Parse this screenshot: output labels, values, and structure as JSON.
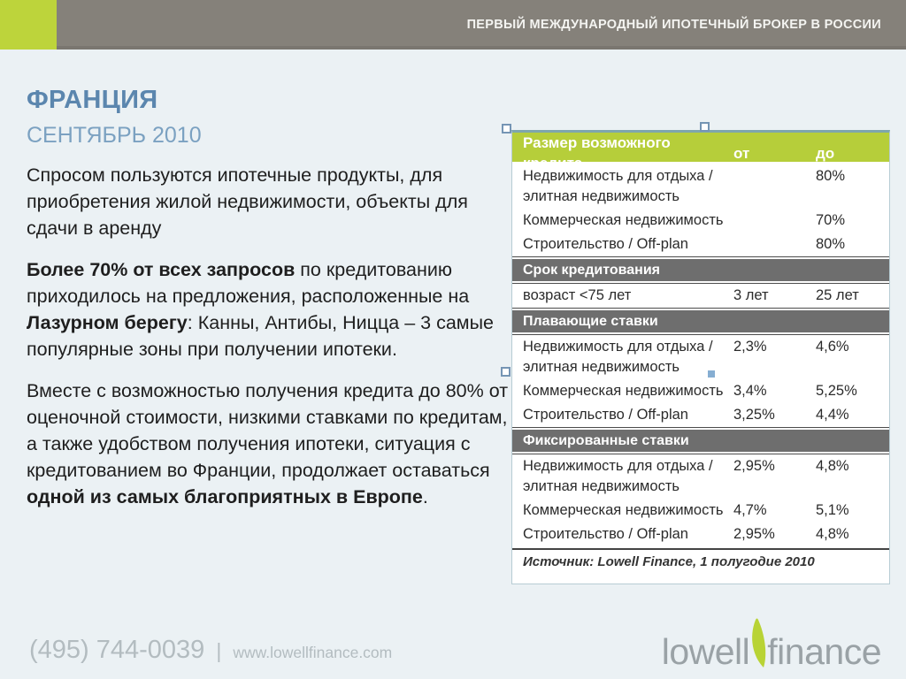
{
  "header": {
    "tagline": "ПЕРВЫЙ МЕЖДУНАРОДНЫЙ ИПОТЕЧНЫЙ БРОКЕР В РОССИИ"
  },
  "content": {
    "title": "ФРАНЦИЯ",
    "subtitle": "СЕНТЯБРЬ 2010",
    "paragraphs": [
      [
        {
          "text": "Спросом пользуются ипотечные продукты, для приобретения жилой недвижимости, объекты для сдачи в аренду",
          "bold": false
        }
      ],
      [
        {
          "text": "Более 70% от всех запросов",
          "bold": true
        },
        {
          "text": " по кредитованию приходилось на предложения, расположенные на ",
          "bold": false
        },
        {
          "text": "Лазурном берегу",
          "bold": true
        },
        {
          "text": ": Канны, Антибы, Ницца – 3 самые популярные зоны при получении ипотеки.",
          "bold": false
        }
      ],
      [
        {
          "text": "Вместе с возможностью получения кредита до 80% от оценочной стоимости, низкими ставками по кредитам, а также удобством получения ипотеки, ситуация с кредитованием во Франции, продолжает оставаться ",
          "bold": false
        },
        {
          "text": "одной из самых благоприятных в Европе",
          "bold": true
        },
        {
          "text": ".",
          "bold": false
        }
      ]
    ]
  },
  "table": {
    "sections": [
      {
        "header": {
          "label": "Размер возможного кредита",
          "col2": "от",
          "col3": "до",
          "style": "green"
        },
        "rows": [
          {
            "label": "Недвижимость для отдыха / элитная недвижимость",
            "col2": "",
            "col3": "80%"
          },
          {
            "label": "Коммерческая недвижимость",
            "col2": "",
            "col3": "70%"
          },
          {
            "label": "Строительство / Off-plan",
            "col2": "",
            "col3": "80%"
          }
        ]
      },
      {
        "header": {
          "label": "Срок кредитования",
          "col2": "",
          "col3": "",
          "style": "gray"
        },
        "rows": [
          {
            "label": "возраст <75 лет",
            "col2": "3 лет",
            "col3": "25 лет"
          }
        ]
      },
      {
        "header": {
          "label": "Плавающие ставки",
          "col2": "",
          "col3": "",
          "style": "gray"
        },
        "rows": [
          {
            "label": "Недвижимость для отдыха / элитная недвижимость",
            "col2": "2,3%",
            "col3": "4,6%"
          },
          {
            "label": "Коммерческая недвижимость",
            "col2": "3,4%",
            "col3": "5,25%"
          },
          {
            "label": "Строительство / Off-plan",
            "col2": "3,25%",
            "col3": "4,4%"
          }
        ]
      },
      {
        "header": {
          "label": "Фиксированные ставки",
          "col2": "",
          "col3": "",
          "style": "gray"
        },
        "rows": [
          {
            "label": "Недвижимость для отдыха / элитная недвижимость",
            "col2": "2,95%",
            "col3": "4,8%"
          },
          {
            "label": "Коммерческая недвижимость",
            "col2": "4,7%",
            "col3": "5,1%"
          },
          {
            "label": "Строительство / Off-plan",
            "col2": "2,95%",
            "col3": "4,8%"
          }
        ]
      }
    ],
    "source": "Источник: Lowell Finance, 1 полугодие 2010"
  },
  "footer": {
    "phone": "(495) 744-0039",
    "separator": "|",
    "website": "www.lowellfinance.com",
    "logo": {
      "part1": "lowell",
      "part2": "finance"
    }
  },
  "colors": {
    "background": "#ebf1f4",
    "header_gray": "#85817a",
    "accent_lime": "#bdd43b",
    "table_green_header": "#b6ce3a",
    "table_gray_header": "#6e6e6e",
    "title_blue": "#5b86ae",
    "subtitle_blue": "#7ba1c1",
    "footer_text_gray": "#b3bcc0",
    "logo_gray": "#9aa2a6"
  }
}
